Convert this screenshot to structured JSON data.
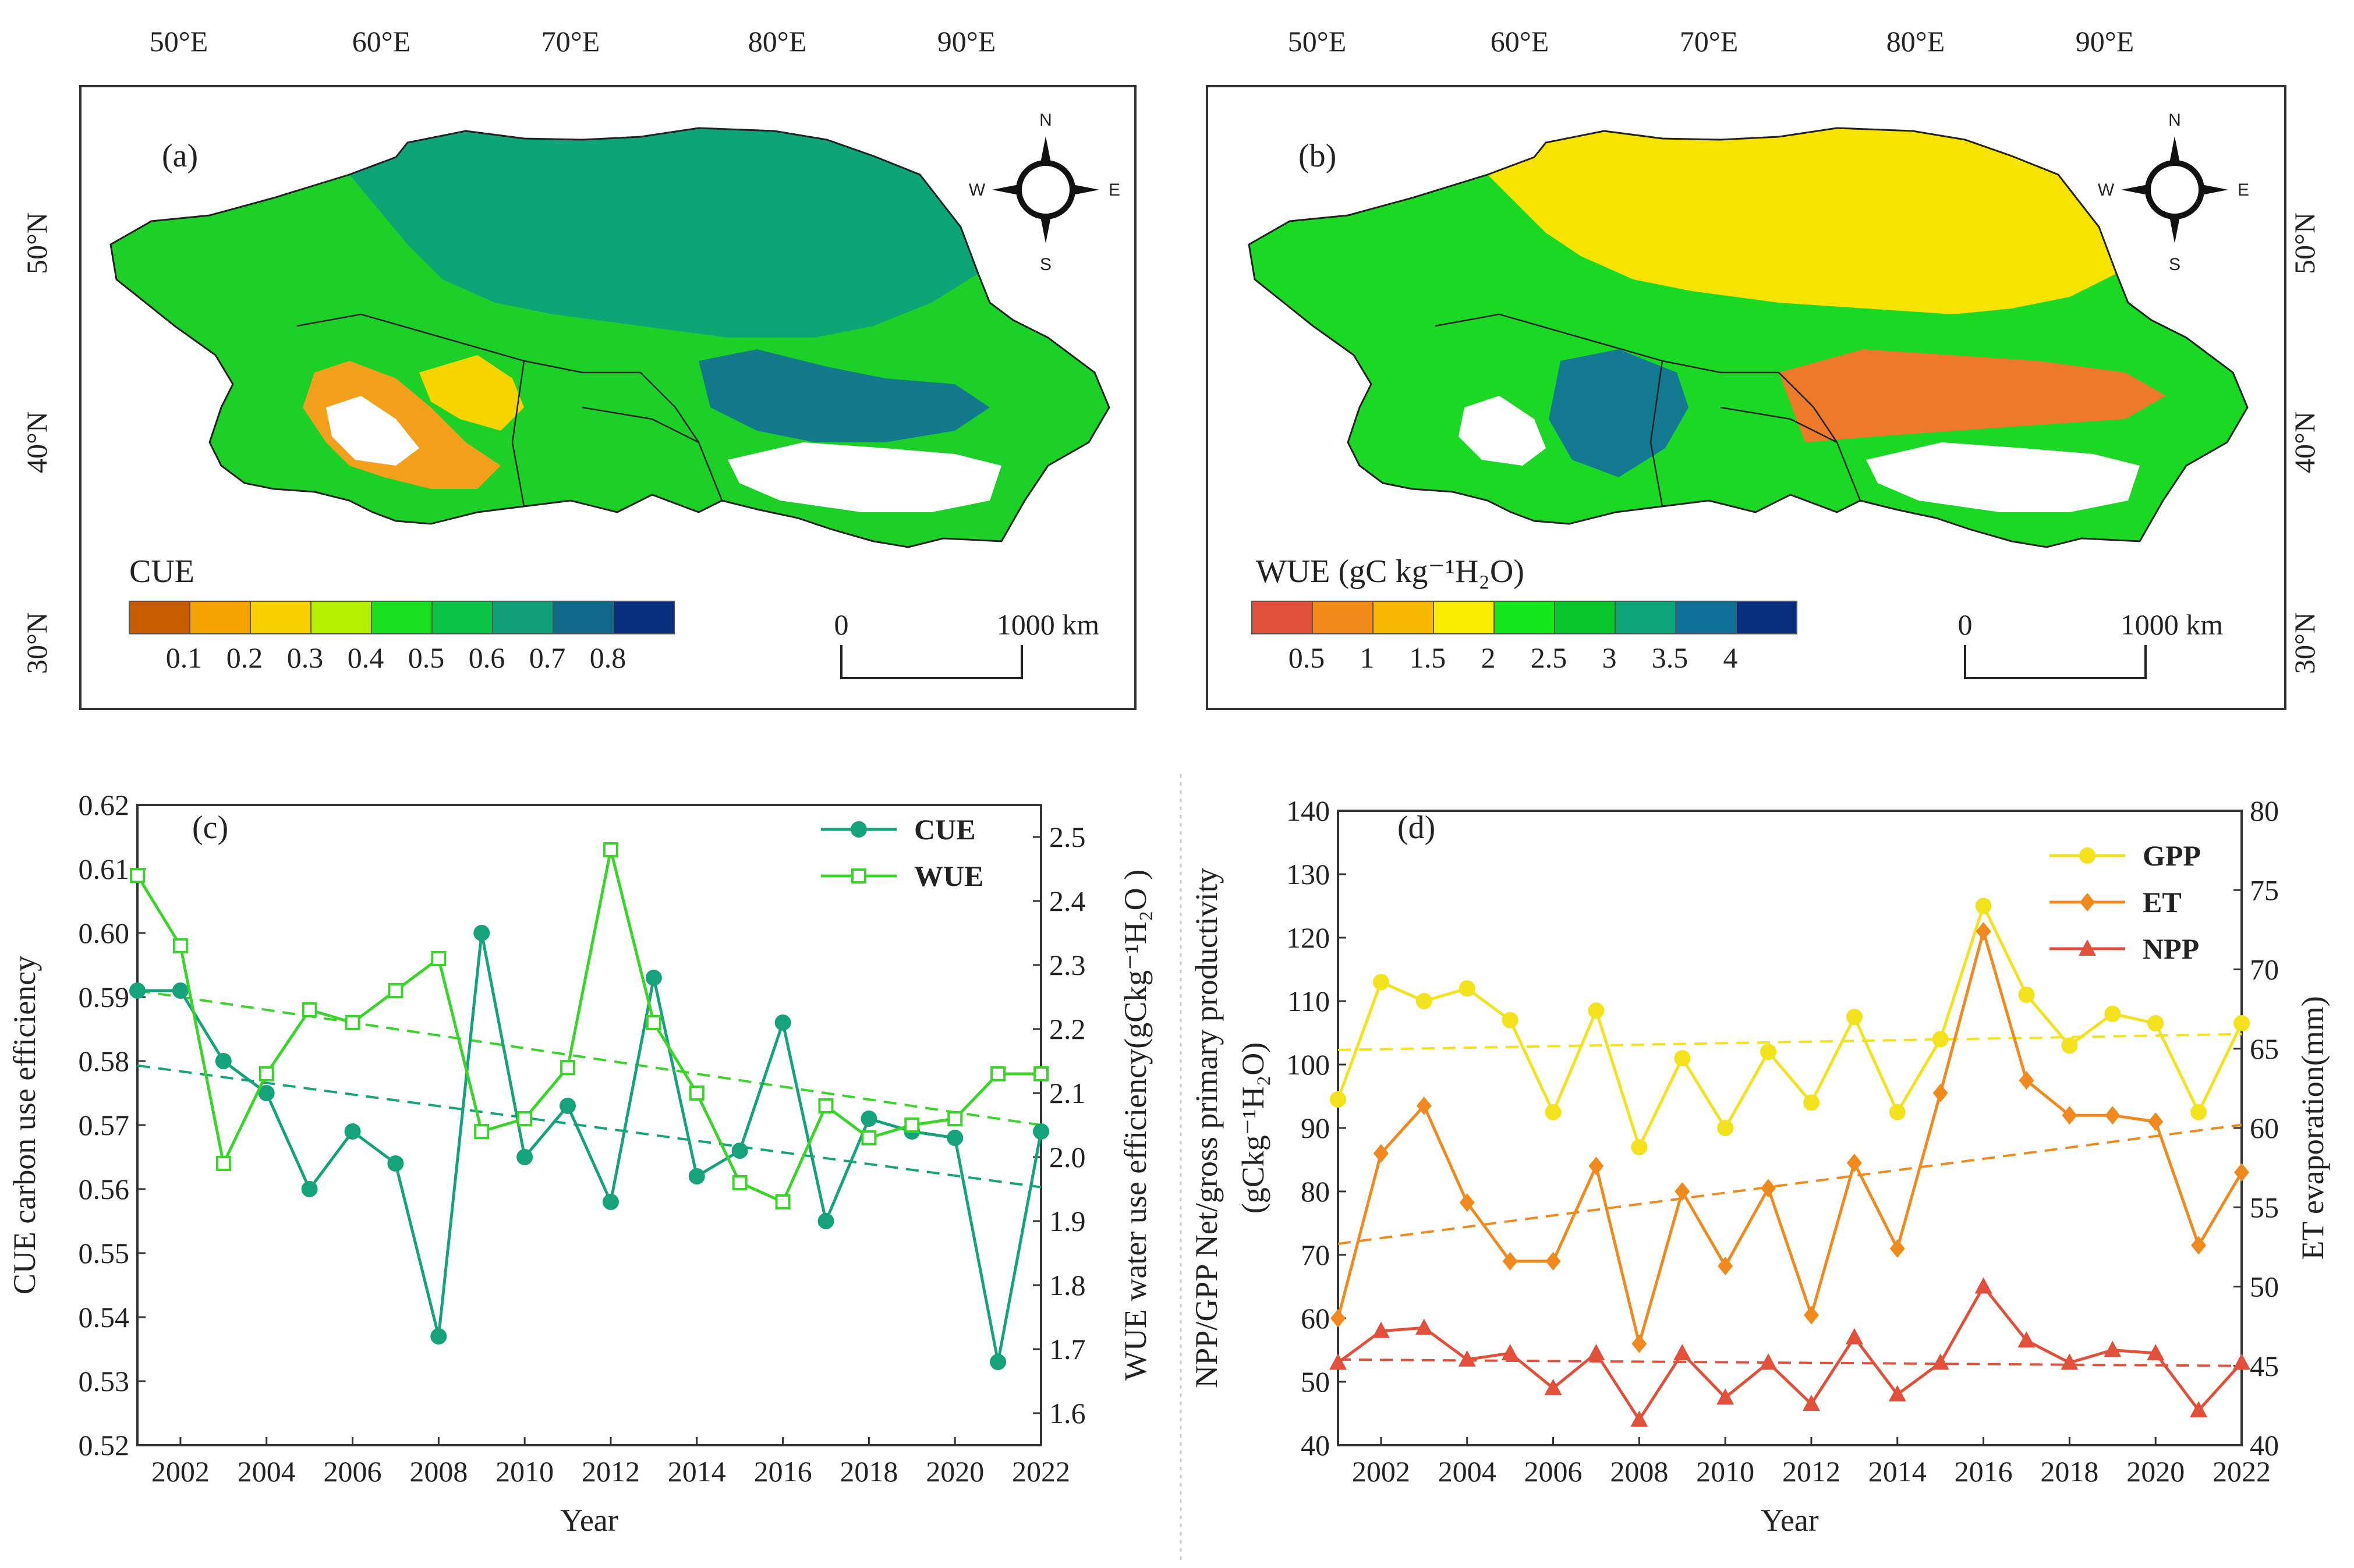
{
  "maps": [
    {
      "panel_label": "(a)",
      "lon_ticks": [
        "50°E",
        "60°E",
        "70°E",
        "80°E",
        "90°E"
      ],
      "lat_ticks": [
        "50°N",
        "40°N",
        "30°N"
      ],
      "compass": {
        "n": "N",
        "s": "S",
        "e": "E",
        "w": "W"
      },
      "scalebar": {
        "start": "0",
        "end": "1000 km"
      },
      "legend": {
        "title": "CUE",
        "tick_labels": [
          "0.1",
          "0.2",
          "0.3",
          "0.4",
          "0.5",
          "0.6",
          "0.7",
          "0.8"
        ],
        "colors": [
          "#c85a00",
          "#f5a300",
          "#f7d000",
          "#b5f000",
          "#19e01f",
          "#0cc445",
          "#0e9f7a",
          "#0f6a8a",
          "#062e7c"
        ]
      }
    },
    {
      "panel_label": "(b)",
      "lon_ticks": [
        "50°E",
        "60°E",
        "70°E",
        "80°E",
        "90°E"
      ],
      "lat_ticks": [
        "50°N",
        "40°N",
        "30°N"
      ],
      "compass": {
        "n": "N",
        "s": "S",
        "e": "E",
        "w": "W"
      },
      "scalebar": {
        "start": "0",
        "end": "1000 km"
      },
      "legend": {
        "title": "WUE (gC kg⁻¹H₂O)",
        "tick_labels": [
          "0.5",
          "1",
          "1.5",
          "2",
          "2.5",
          "3",
          "3.5",
          "4"
        ],
        "colors": [
          "#e0503a",
          "#f28a1a",
          "#f7b600",
          "#f9ea00",
          "#14e61e",
          "#06c62b",
          "#0ea57a",
          "#106e98",
          "#062e7c"
        ]
      }
    }
  ],
  "chart_data": [
    {
      "panel_label": "(c)",
      "type": "line",
      "xlabel": "Year",
      "ylabel_left": "CUE carbon use efficiency",
      "ylabel_right": "WUE water use efficiency(gCkg⁻¹H₂O )",
      "xlim": [
        2001,
        2022
      ],
      "x_ticks": [
        "2002",
        "2004",
        "2006",
        "2008",
        "2010",
        "2012",
        "2014",
        "2016",
        "2018",
        "2020",
        "2022"
      ],
      "ylim_left": [
        0.52,
        0.62
      ],
      "y_ticks_left": [
        "0.52",
        "0.53",
        "0.54",
        "0.55",
        "0.56",
        "0.57",
        "0.58",
        "0.59",
        "0.60",
        "0.61",
        "0.62"
      ],
      "ylim_right": [
        1.55,
        2.55
      ],
      "y_ticks_right": [
        "1.6",
        "1.7",
        "1.8",
        "1.9",
        "2.0",
        "2.1",
        "2.2",
        "2.3",
        "2.4",
        "2.5"
      ],
      "legend_position": "top-right",
      "x": [
        2001,
        2002,
        2003,
        2004,
        2005,
        2006,
        2007,
        2008,
        2009,
        2010,
        2011,
        2012,
        2013,
        2014,
        2015,
        2016,
        2017,
        2018,
        2019,
        2020,
        2021,
        2022
      ],
      "series": [
        {
          "name": "CUE",
          "axis": "left",
          "color": "#16a37c",
          "marker": "circle",
          "values": [
            0.591,
            0.591,
            0.58,
            0.575,
            0.56,
            0.569,
            0.564,
            0.537,
            0.6,
            0.565,
            0.573,
            0.558,
            0.593,
            0.562,
            0.566,
            0.586,
            0.555,
            0.571,
            0.569,
            0.568,
            0.533,
            0.569
          ],
          "trend": [
            0.5793,
            0.5603
          ]
        },
        {
          "name": "WUE",
          "axis": "right",
          "color": "#3ad42a",
          "marker": "open-square",
          "values": [
            2.44,
            2.33,
            1.99,
            2.13,
            2.23,
            2.21,
            2.26,
            2.31,
            2.04,
            2.06,
            2.14,
            2.48,
            2.21,
            2.1,
            1.96,
            1.93,
            2.08,
            2.03,
            2.05,
            2.06,
            2.13,
            2.13
          ],
          "trend": [
            2.26,
            2.05
          ]
        }
      ]
    },
    {
      "panel_label": "(d)",
      "type": "line",
      "xlabel": "Year",
      "ylabel_left": "NPP/GPP Net/gross primary productivity",
      "ylabel_left_unit": "(gCkg⁻¹H₂O)",
      "ylabel_right": "ET evaporation(mm)",
      "xlim": [
        2001,
        2022
      ],
      "x_ticks": [
        "2002",
        "2004",
        "2006",
        "2008",
        "2010",
        "2012",
        "2014",
        "2016",
        "2018",
        "2020",
        "2022"
      ],
      "ylim_left": [
        40,
        140
      ],
      "y_ticks_left": [
        "40",
        "50",
        "60",
        "70",
        "80",
        "90",
        "100",
        "110",
        "120",
        "130",
        "140"
      ],
      "ylim_right": [
        40,
        80
      ],
      "y_ticks_right": [
        "40",
        "45",
        "50",
        "55",
        "60",
        "65",
        "70",
        "75",
        "80"
      ],
      "legend_position": "top-right",
      "x": [
        2001,
        2002,
        2003,
        2004,
        2005,
        2006,
        2007,
        2008,
        2009,
        2010,
        2011,
        2012,
        2013,
        2014,
        2015,
        2016,
        2017,
        2018,
        2019,
        2020,
        2021,
        2022
      ],
      "series": [
        {
          "name": "GPP",
          "axis": "left",
          "color": "#f3e21d",
          "marker": "circle",
          "values": [
            94.5,
            113.0,
            110.0,
            112.0,
            107.0,
            92.5,
            108.5,
            87.0,
            101.0,
            90.0,
            102.0,
            94.0,
            107.5,
            92.5,
            104.0,
            125.0,
            111.0,
            103.0,
            108.0,
            106.5,
            92.5,
            106.5
          ],
          "trend": [
            102.3,
            104.8
          ]
        },
        {
          "name": "ET",
          "axis": "right",
          "color": "#f08a1e",
          "marker": "diamond",
          "values": [
            48.0,
            58.4,
            61.4,
            55.3,
            51.6,
            51.6,
            57.6,
            46.4,
            56.0,
            51.3,
            56.2,
            48.2,
            57.8,
            52.4,
            62.2,
            72.4,
            63.0,
            60.8,
            60.8,
            60.4,
            52.6,
            57.2
          ],
          "trend": [
            52.7,
            60.2
          ]
        },
        {
          "name": "NPP",
          "axis": "left",
          "color": "#e0503a",
          "marker": "triangle",
          "values": [
            53.0,
            58.0,
            58.5,
            53.5,
            54.5,
            49.0,
            54.5,
            44.0,
            54.5,
            47.5,
            53.0,
            46.5,
            57.0,
            48.0,
            53.0,
            65.0,
            56.5,
            53.0,
            55.0,
            54.5,
            45.5,
            53.0
          ],
          "trend": [
            53.5,
            52.5
          ]
        }
      ]
    }
  ]
}
